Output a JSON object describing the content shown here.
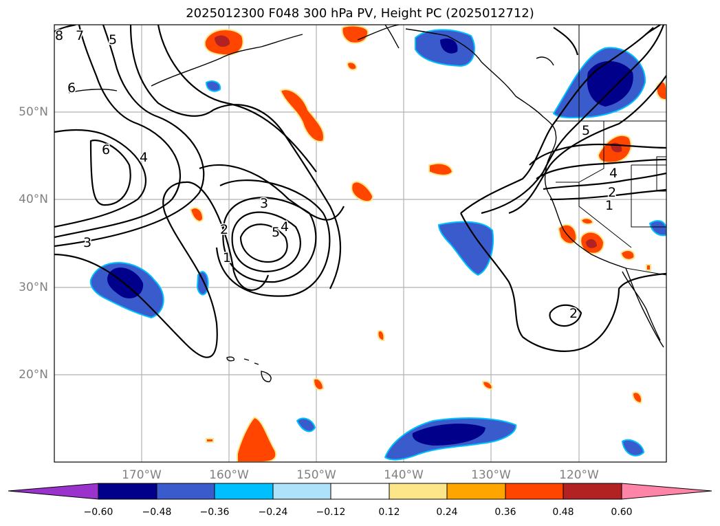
{
  "title": "2025012300 F048 300 hPa PV, Height PC (2025012712)",
  "lat_labels": [
    "50°N",
    "40°N",
    "30°N",
    "20°N"
  ],
  "lon_labels": [
    "170°W",
    "160°W",
    "150°W",
    "140°W",
    "130°W",
    "120°W"
  ],
  "colorbar": {
    "ticks": [
      "−0.60",
      "−0.48",
      "−0.36",
      "−0.24",
      "−0.12",
      "0.12",
      "0.24",
      "0.36",
      "0.48",
      "0.60"
    ],
    "colors": [
      "#9933cc",
      "#00008b",
      "#3a5bcc",
      "#00bfff",
      "#aee2fa",
      "#ffffff",
      "#fde68a",
      "#ffa500",
      "#ff4500",
      "#b22222",
      "#ff85a8"
    ]
  },
  "contour_labels": [
    "8",
    "7",
    "6",
    "5",
    "6",
    "4",
    "3",
    "3",
    "2",
    "1",
    "5",
    "4",
    "5",
    "4",
    "2",
    "1",
    "2"
  ]
}
